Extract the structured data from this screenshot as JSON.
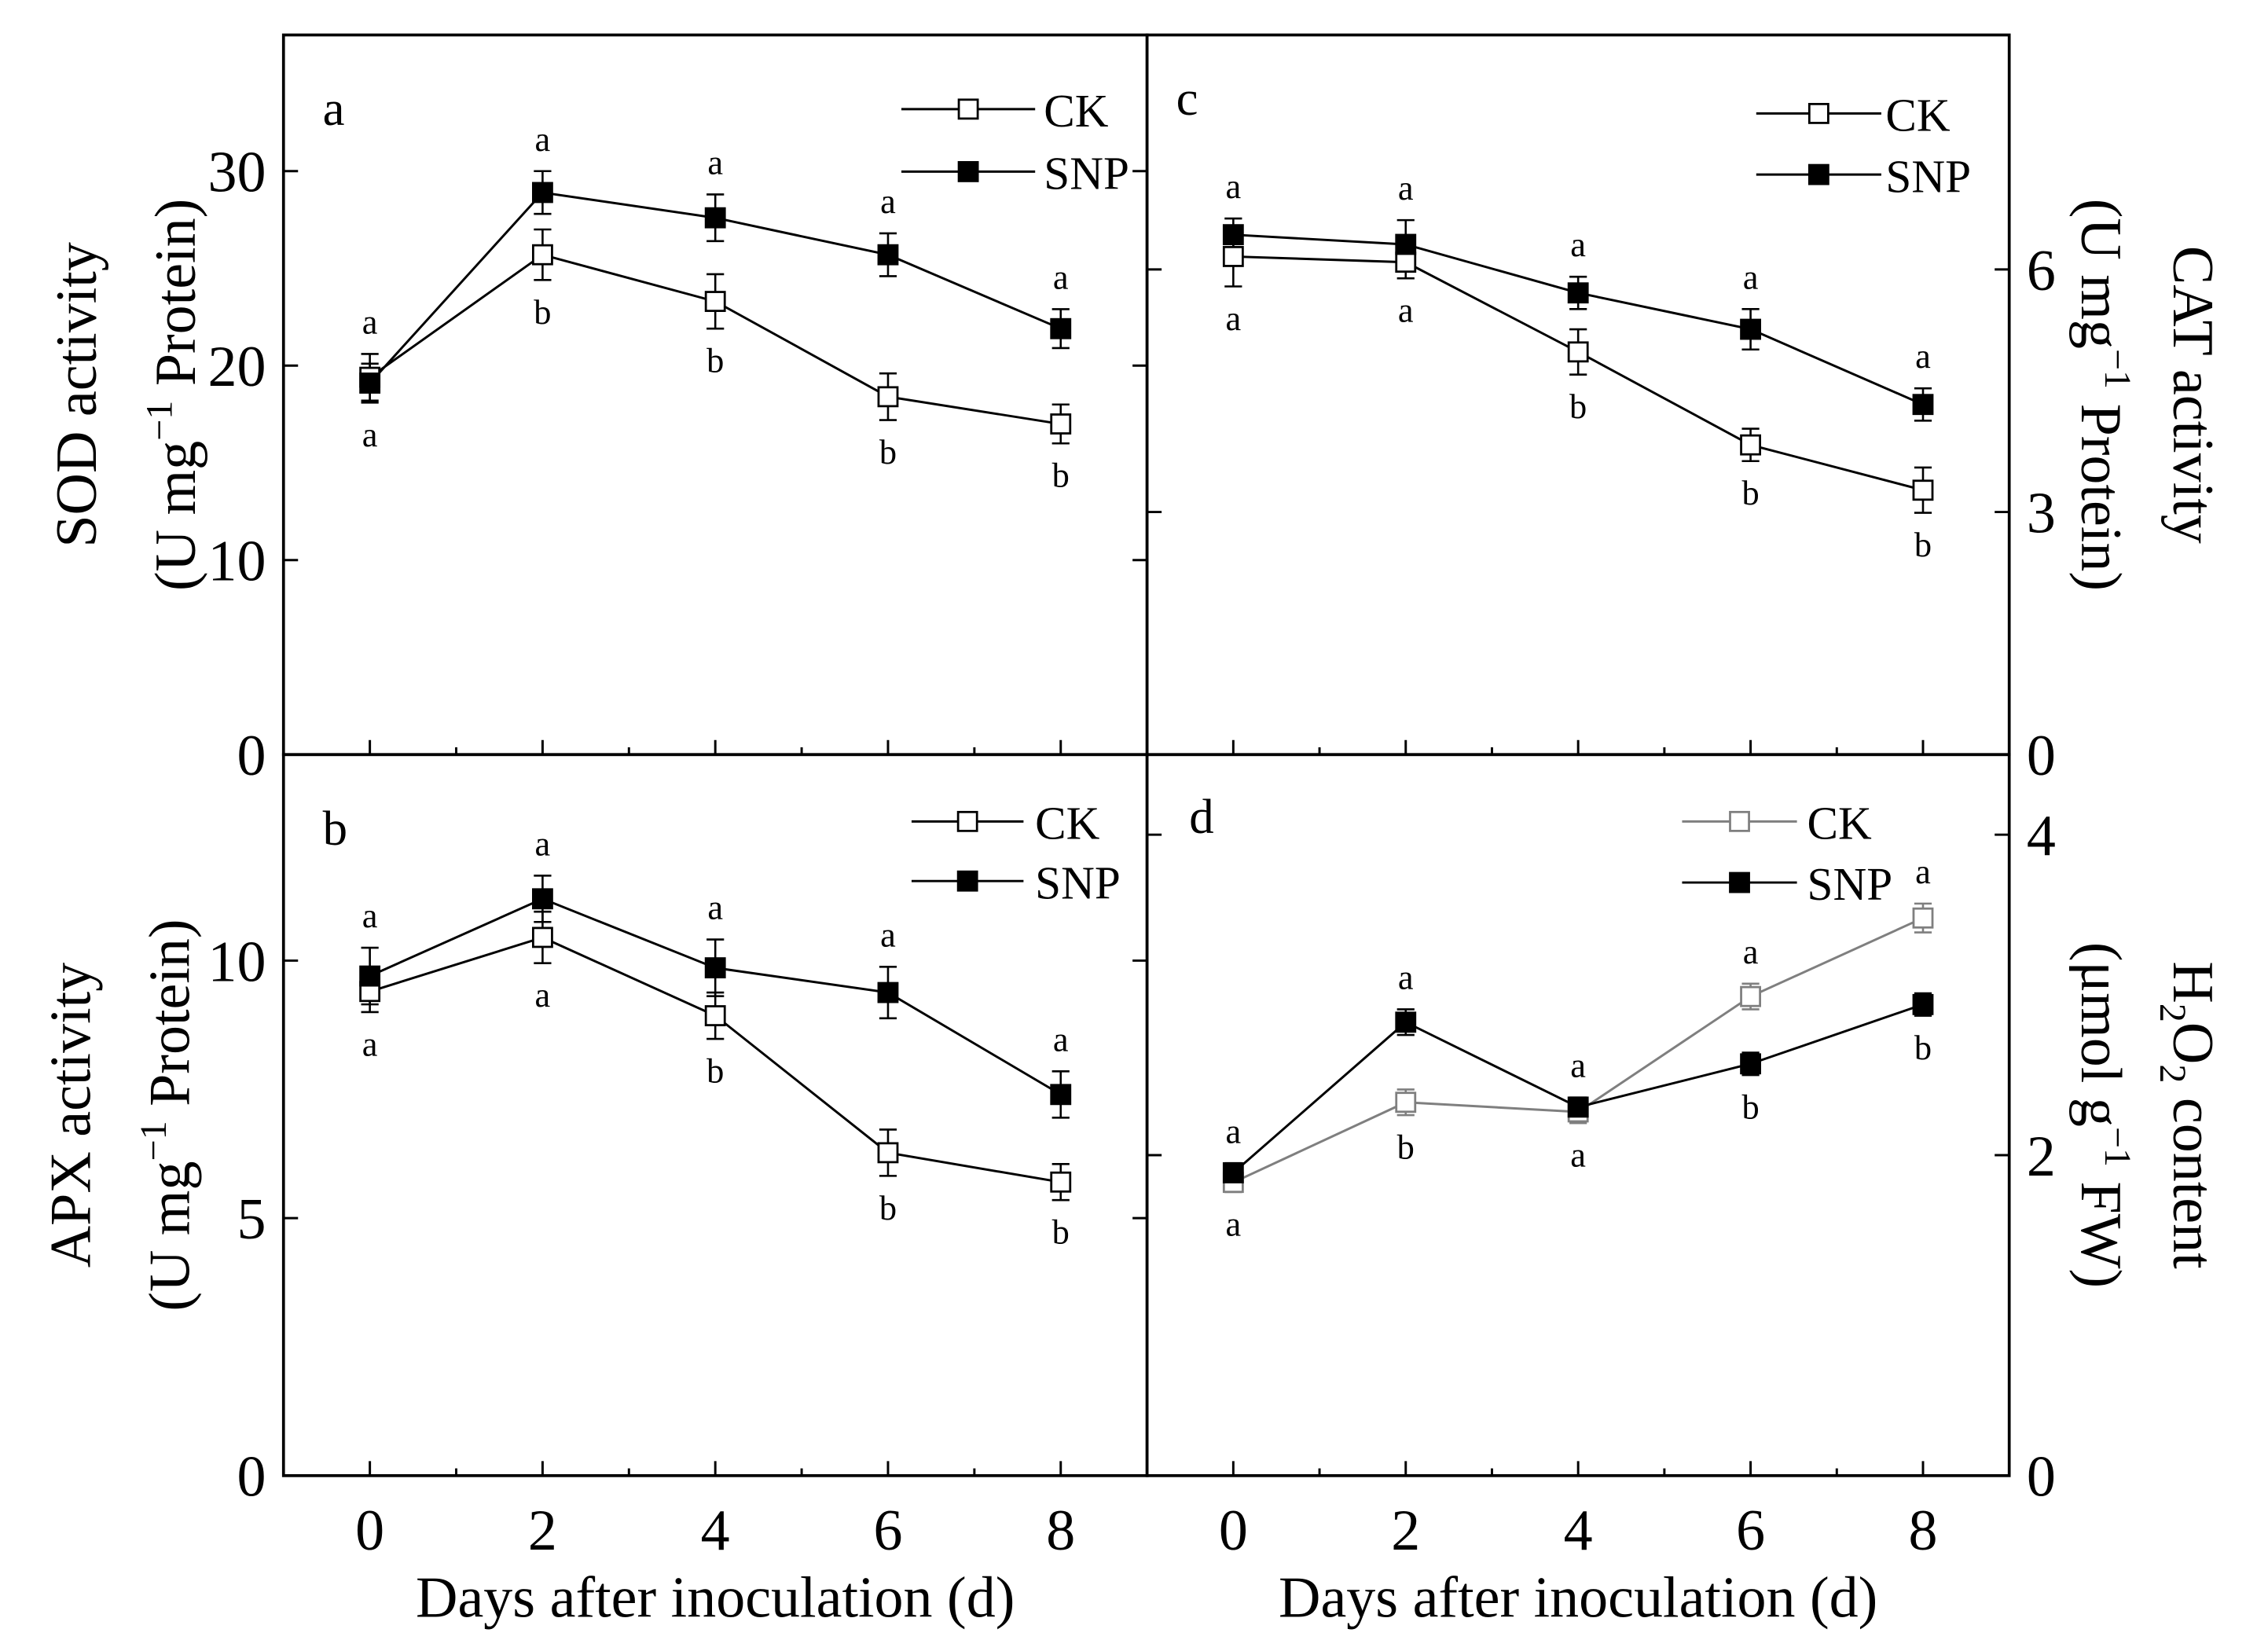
{
  "chart_data": [
    {
      "panel": "a",
      "type": "line",
      "x": [
        0,
        2,
        4,
        6,
        8
      ],
      "xlim": [
        -1,
        9
      ],
      "y_axis": "left",
      "ylim": [
        0,
        37
      ],
      "yticks": [
        0,
        10,
        20,
        30
      ],
      "ytick_labels": [
        "0",
        "10",
        "20",
        "30"
      ],
      "ylabel": [
        [
          {
            "t": "SOD activity"
          }
        ],
        [
          {
            "t": "(U mg"
          },
          {
            "t": "−1",
            "sup": true
          },
          {
            "t": " Protein)"
          }
        ]
      ],
      "legend": "top-right",
      "series": [
        {
          "name": "CK",
          "marker": "open-square",
          "color": "#000000",
          "values": [
            19.4,
            25.7,
            23.3,
            18.4,
            17.0
          ],
          "errors": [
            1.2,
            1.3,
            1.4,
            1.2,
            1.0
          ]
        },
        {
          "name": "SNP",
          "marker": "filled-square",
          "color": "#000000",
          "values": [
            19.1,
            28.9,
            27.6,
            25.7,
            21.9
          ],
          "errors": [
            1.0,
            1.1,
            1.2,
            1.1,
            1.0
          ]
        }
      ],
      "letters_above": [
        "a",
        "a",
        "a",
        "a",
        "a"
      ],
      "letters_below": [
        "a",
        "b",
        "b",
        "b",
        "b"
      ]
    },
    {
      "panel": "b",
      "type": "line",
      "x": [
        0,
        2,
        4,
        6,
        8
      ],
      "xlim": [
        -1,
        9
      ],
      "xtick_labels": [
        "0",
        "2",
        "4",
        "6",
        "8"
      ],
      "xlabel": "Days after inoculation (d)",
      "y_axis": "left",
      "ylim": [
        0,
        14
      ],
      "yticks": [
        0,
        5,
        10
      ],
      "ytick_labels": [
        "0",
        "5",
        "10"
      ],
      "ylabel": [
        [
          {
            "t": "APX activity"
          }
        ],
        [
          {
            "t": "(U mg"
          },
          {
            "t": "−1",
            "sup": true
          },
          {
            "t": " Protein)"
          }
        ]
      ],
      "legend": "top-right",
      "series": [
        {
          "name": "CK",
          "marker": "open-square",
          "color": "#000000",
          "values": [
            9.4,
            10.45,
            8.93,
            6.27,
            5.7
          ],
          "errors": [
            0.4,
            0.5,
            0.45,
            0.45,
            0.35
          ]
        },
        {
          "name": "SNP",
          "marker": "filled-square",
          "color": "#000000",
          "values": [
            9.7,
            11.2,
            9.86,
            9.38,
            7.4
          ],
          "errors": [
            0.55,
            0.45,
            0.55,
            0.5,
            0.45
          ]
        }
      ],
      "letters_above": [
        "a",
        "a",
        "a",
        "a",
        "a"
      ],
      "letters_below": [
        "a",
        "a",
        "b",
        "b",
        "b"
      ]
    },
    {
      "panel": "c",
      "type": "line",
      "x": [
        0,
        2,
        4,
        6,
        8
      ],
      "xlim": [
        -1,
        9
      ],
      "y_axis": "right",
      "ylim": [
        0,
        8.9
      ],
      "yticks": [
        0,
        3,
        6
      ],
      "ytick_labels": [
        "0",
        "3",
        "6"
      ],
      "ylabel": [
        [
          {
            "t": "CAT activity"
          }
        ],
        [
          {
            "t": "(U mg"
          },
          {
            "t": "−1",
            "sup": true
          },
          {
            "t": " Protein)"
          }
        ]
      ],
      "legend": "top-right",
      "series": [
        {
          "name": "CK",
          "marker": "open-square",
          "color": "#000000",
          "values": [
            6.16,
            6.09,
            4.98,
            3.83,
            3.27
          ],
          "errors": [
            0.37,
            0.2,
            0.28,
            0.2,
            0.28
          ]
        },
        {
          "name": "SNP",
          "marker": "filled-square",
          "color": "#000000",
          "values": [
            6.43,
            6.31,
            5.71,
            5.26,
            4.33
          ],
          "errors": [
            0.2,
            0.3,
            0.2,
            0.25,
            0.2
          ]
        }
      ],
      "letters_above": [
        "a",
        "a",
        "a",
        "a",
        "a"
      ],
      "letters_below": [
        "a",
        "a",
        "b",
        "b",
        "b"
      ]
    },
    {
      "panel": "d",
      "type": "line",
      "x": [
        0,
        2,
        4,
        6,
        8
      ],
      "xlim": [
        -1,
        9
      ],
      "xtick_labels": [
        "0",
        "2",
        "4",
        "6",
        "8"
      ],
      "xlabel": "Days after inoculation (d)",
      "y_axis": "right",
      "ylim": [
        0,
        4.5
      ],
      "yticks": [
        0,
        2,
        4
      ],
      "ytick_labels": [
        "0",
        "2",
        "4"
      ],
      "ylabel": [
        [
          {
            "t": "H"
          },
          {
            "t": "2",
            "sub": true
          },
          {
            "t": "O"
          },
          {
            "t": "2",
            "sub": true
          },
          {
            "t": " content"
          }
        ],
        [
          {
            "t": "(μmol g"
          },
          {
            "t": "−1",
            "sup": true
          },
          {
            "t": " FW)"
          }
        ]
      ],
      "legend": "top-right",
      "series": [
        {
          "name": "CK",
          "marker": "open-square",
          "color": "#7f7f7f",
          "values": [
            1.83,
            2.33,
            2.27,
            2.99,
            3.48
          ],
          "errors": [
            0.06,
            0.08,
            0.07,
            0.08,
            0.09
          ]
        },
        {
          "name": "SNP",
          "marker": "filled-square",
          "color": "#000000",
          "values": [
            1.89,
            2.83,
            2.3,
            2.57,
            2.94
          ],
          "errors": [
            0.06,
            0.08,
            0.06,
            0.07,
            0.07
          ]
        }
      ],
      "letters_above": [
        "a",
        "a",
        "a",
        "a",
        "a"
      ],
      "letters_below": [
        "a",
        "b",
        "a",
        "b",
        "b"
      ]
    }
  ]
}
